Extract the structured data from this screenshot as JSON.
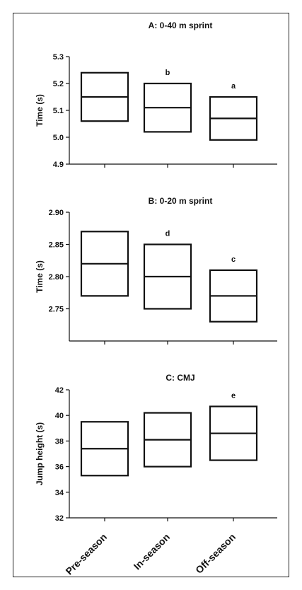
{
  "chart_data": [
    {
      "type": "box",
      "title": "A: 0-40 m sprint",
      "ylabel": "Time (s)",
      "ylim": [
        4.9,
        5.3
      ],
      "yticks": [
        "4.9",
        "5.0",
        "5.1",
        "5.2",
        "5.3"
      ],
      "categories": [
        "Pre-season",
        "In-season",
        "Off-season"
      ],
      "boxes": [
        {
          "low": 5.06,
          "median": 5.15,
          "high": 5.24,
          "annotation": ""
        },
        {
          "low": 5.02,
          "median": 5.11,
          "high": 5.2,
          "annotation": "b"
        },
        {
          "low": 4.99,
          "median": 5.07,
          "high": 5.15,
          "annotation": "a"
        }
      ]
    },
    {
      "type": "box",
      "title": "B: 0-20 m sprint",
      "ylabel": "Time (s)",
      "ylim": [
        2.7,
        2.9
      ],
      "yticks": [
        "2.75",
        "2.80",
        "2.85",
        "2.90"
      ],
      "categories": [
        "Pre-season",
        "In-season",
        "Off-season"
      ],
      "boxes": [
        {
          "low": 2.77,
          "median": 2.82,
          "high": 2.87,
          "annotation": ""
        },
        {
          "low": 2.75,
          "median": 2.8,
          "high": 2.85,
          "annotation": "d"
        },
        {
          "low": 2.73,
          "median": 2.77,
          "high": 2.81,
          "annotation": "c"
        }
      ]
    },
    {
      "type": "box",
      "title": "C: CMJ",
      "ylabel": "Jump height (s)",
      "ylim": [
        32,
        42
      ],
      "yticks": [
        "32",
        "34",
        "36",
        "38",
        "40",
        "42"
      ],
      "categories": [
        "Pre-season",
        "In-season",
        "Off-season"
      ],
      "boxes": [
        {
          "low": 35.3,
          "median": 37.4,
          "high": 39.5,
          "annotation": ""
        },
        {
          "low": 36.0,
          "median": 38.1,
          "high": 40.2,
          "annotation": ""
        },
        {
          "low": 36.5,
          "median": 38.6,
          "high": 40.7,
          "annotation": "e"
        }
      ]
    }
  ],
  "x_axis_labels": [
    "Pre-season",
    "In-season",
    "Off-season"
  ]
}
